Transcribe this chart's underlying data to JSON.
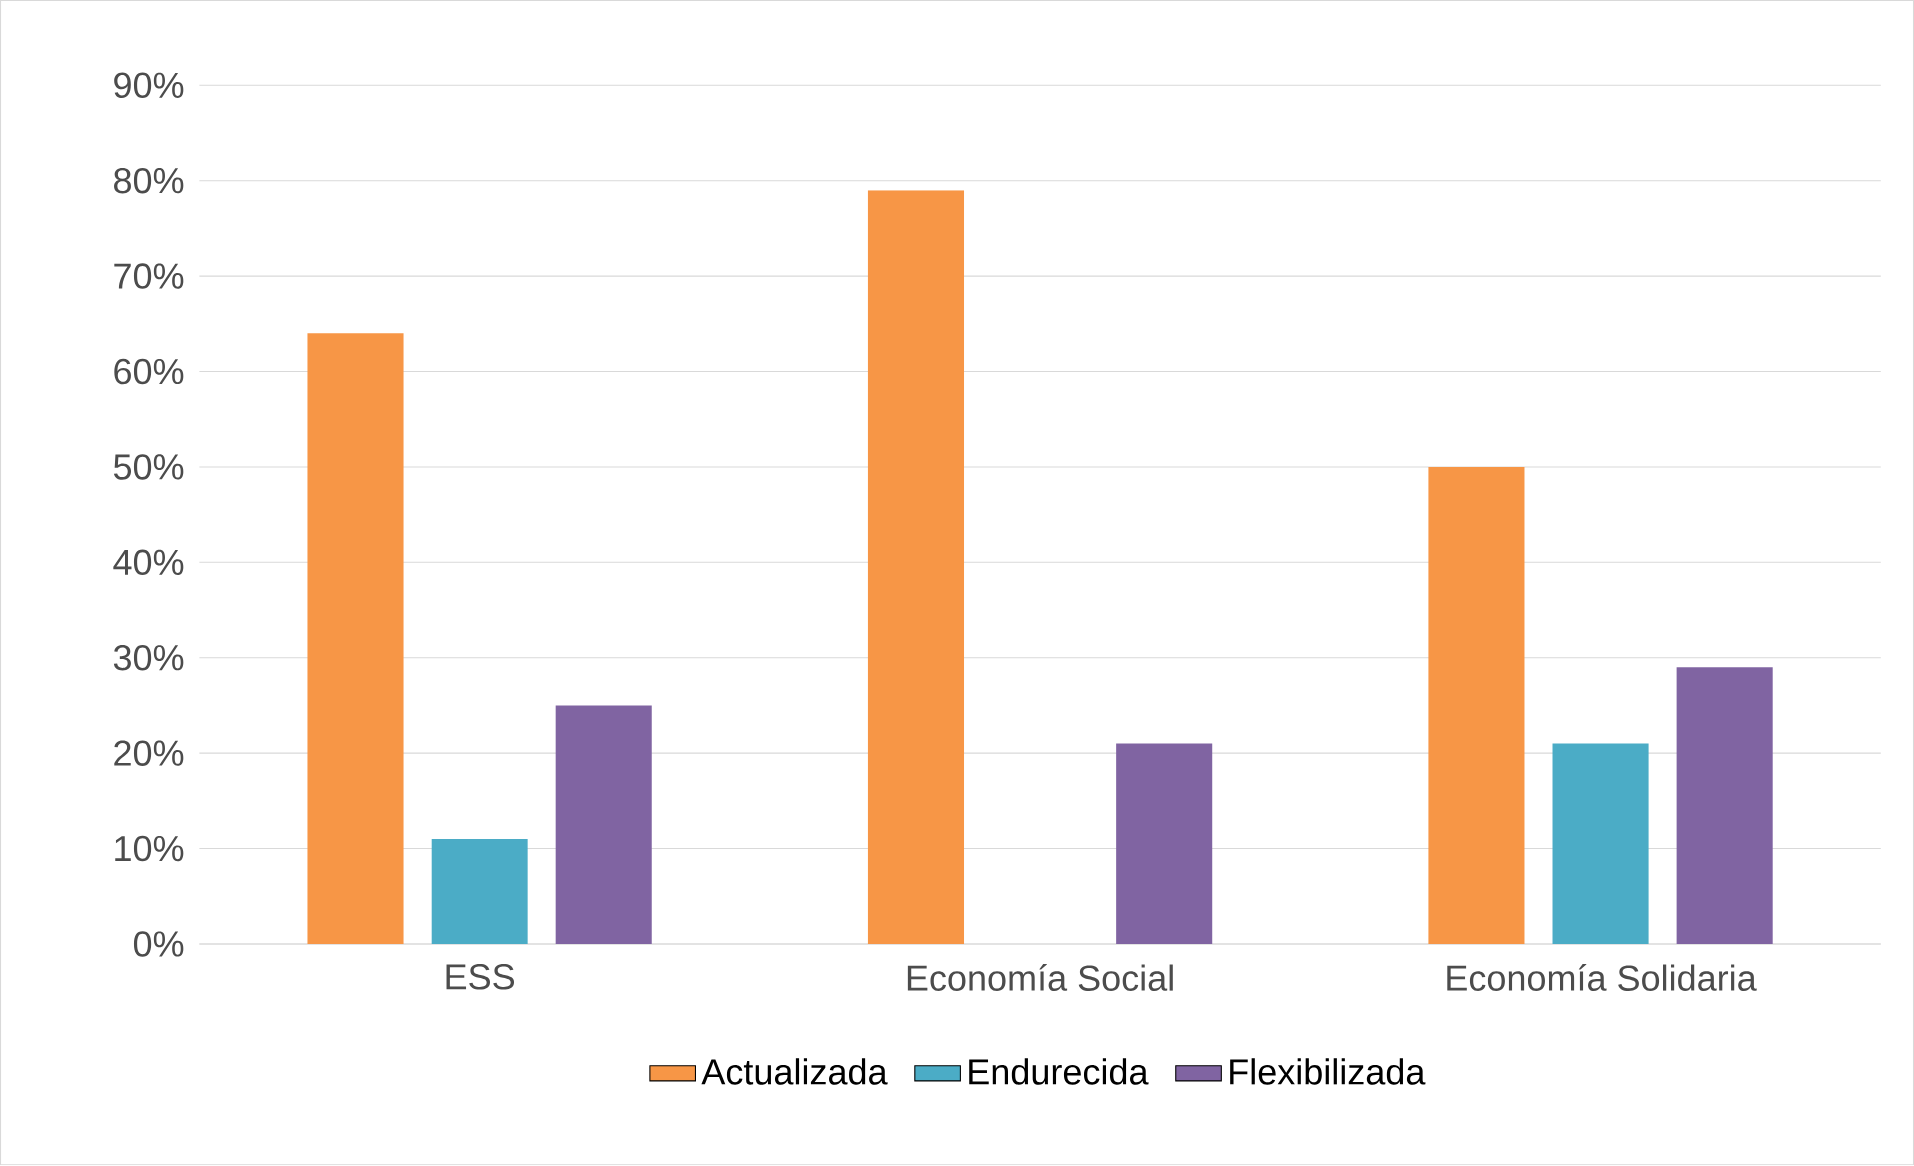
{
  "chart_data": {
    "type": "bar",
    "categories": [
      "ESS",
      "Economía Social",
      "Economía Solidaria"
    ],
    "series": [
      {
        "name": "Actualizada",
        "color": "#f79646",
        "values": [
          64,
          79,
          50
        ]
      },
      {
        "name": "Endurecida",
        "color": "#4bacc6",
        "values": [
          11,
          0,
          21
        ]
      },
      {
        "name": "Flexibilizada",
        "color": "#8064a2",
        "values": [
          25,
          21,
          29
        ]
      }
    ],
    "ylim": [
      0,
      90
    ],
    "yticks": [
      {
        "value": 0,
        "label": "0%"
      },
      {
        "value": 10,
        "label": "10%"
      },
      {
        "value": 20,
        "label": "20%"
      },
      {
        "value": 30,
        "label": "30%"
      },
      {
        "value": 40,
        "label": "40%"
      },
      {
        "value": 50,
        "label": "50%"
      },
      {
        "value": 60,
        "label": "60%"
      },
      {
        "value": 70,
        "label": "70%"
      },
      {
        "value": 80,
        "label": "80%"
      },
      {
        "value": 90,
        "label": "90%"
      }
    ],
    "grid": "y",
    "legend": "bottom"
  }
}
